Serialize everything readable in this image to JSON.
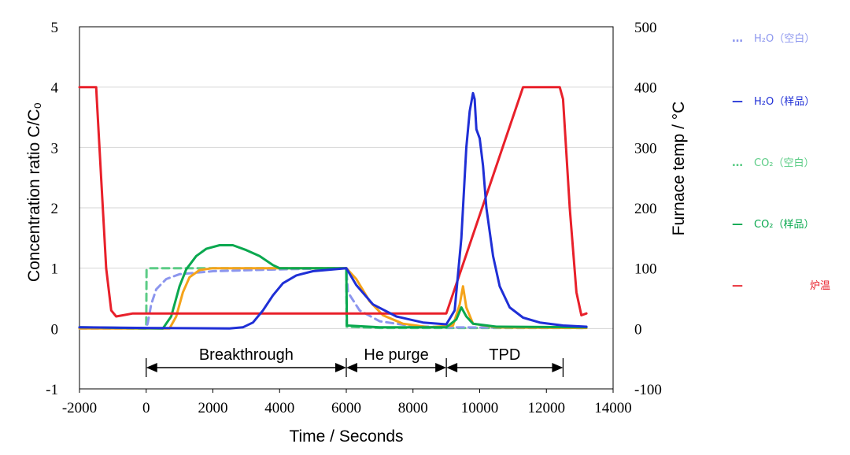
{
  "chart_data": {
    "type": "line",
    "xlabel": "Time / Seconds",
    "ylabel_left": "Concentration ratio C/C₀",
    "ylabel_right": "Furnace temp / °C",
    "xlim": [
      -2000,
      14000
    ],
    "ylim_left": [
      -1,
      5
    ],
    "ylim_right": [
      -100,
      500
    ],
    "x_ticks": [
      "-2000",
      "0",
      "2000",
      "4000",
      "6000",
      "8000",
      "10000",
      "12000",
      "14000"
    ],
    "y_left_ticks": [
      "-1",
      "0",
      "1",
      "2",
      "3",
      "4",
      "5"
    ],
    "y_right_ticks": [
      "-100",
      "0",
      "100",
      "200",
      "300",
      "400",
      "500"
    ],
    "grid": "horizontal",
    "legend_position": "right",
    "colors": {
      "h2o": "#1f2fd6",
      "h2o_blank": "#8c96ee",
      "co2": "#0aa84f",
      "co2_blank": "#5ccc86",
      "orange": "#f5a31a",
      "furnace": "#e8202a"
    },
    "phases": [
      {
        "label": "Breakthrough",
        "start": 0,
        "end": 6000
      },
      {
        "label": "He purge",
        "start": 6000,
        "end": 9000
      },
      {
        "label": "TPD",
        "start": 9000,
        "end": 12500
      }
    ],
    "series": [
      {
        "name": "H₂O（空白）",
        "axis": "left",
        "style": "dashed",
        "color_key": "h2o_blank",
        "points": [
          [
            -2000,
            0
          ],
          [
            0,
            0
          ],
          [
            50,
            0.1
          ],
          [
            150,
            0.4
          ],
          [
            300,
            0.65
          ],
          [
            600,
            0.82
          ],
          [
            1000,
            0.9
          ],
          [
            2000,
            0.95
          ],
          [
            4000,
            0.98
          ],
          [
            6000,
            1.0
          ],
          [
            6050,
            0.6
          ],
          [
            6400,
            0.3
          ],
          [
            7000,
            0.12
          ],
          [
            8000,
            0.04
          ],
          [
            9000,
            0.02
          ],
          [
            13200,
            0.01
          ]
        ]
      },
      {
        "name": "H₂O（样品）",
        "axis": "left",
        "style": "solid",
        "color_key": "h2o",
        "points": [
          [
            -2000,
            0.02
          ],
          [
            0,
            0.01
          ],
          [
            2500,
            0
          ],
          [
            2900,
            0.02
          ],
          [
            3200,
            0.1
          ],
          [
            3500,
            0.3
          ],
          [
            3800,
            0.55
          ],
          [
            4100,
            0.75
          ],
          [
            4500,
            0.88
          ],
          [
            5000,
            0.95
          ],
          [
            6000,
            1.0
          ],
          [
            6300,
            0.72
          ],
          [
            6800,
            0.4
          ],
          [
            7500,
            0.2
          ],
          [
            8300,
            0.1
          ],
          [
            9000,
            0.07
          ],
          [
            9250,
            0.3
          ],
          [
            9450,
            1.5
          ],
          [
            9600,
            3.0
          ],
          [
            9700,
            3.6
          ],
          [
            9800,
            3.9
          ],
          [
            9850,
            3.8
          ],
          [
            9900,
            3.3
          ],
          [
            10000,
            3.15
          ],
          [
            10100,
            2.7
          ],
          [
            10200,
            2.0
          ],
          [
            10400,
            1.2
          ],
          [
            10600,
            0.7
          ],
          [
            10900,
            0.35
          ],
          [
            11300,
            0.18
          ],
          [
            11800,
            0.1
          ],
          [
            12500,
            0.05
          ],
          [
            13200,
            0.03
          ]
        ]
      },
      {
        "name": "CO₂（空白）",
        "axis": "left",
        "style": "dashed",
        "color_key": "co2_blank",
        "points": [
          [
            -2000,
            0.01
          ],
          [
            0,
            0
          ],
          [
            10,
            0.98
          ],
          [
            100,
            1.0
          ],
          [
            6000,
            1.0
          ],
          [
            6010,
            0.03
          ],
          [
            7000,
            0.01
          ],
          [
            13200,
            0.01
          ]
        ]
      },
      {
        "name": "CO₂（样品）",
        "axis": "left",
        "style": "solid",
        "color_key": "co2",
        "points": [
          [
            -2000,
            0.02
          ],
          [
            500,
            0
          ],
          [
            750,
            0.2
          ],
          [
            1000,
            0.7
          ],
          [
            1200,
            0.98
          ],
          [
            1500,
            1.2
          ],
          [
            1800,
            1.32
          ],
          [
            2200,
            1.38
          ],
          [
            2600,
            1.38
          ],
          [
            3000,
            1.3
          ],
          [
            3400,
            1.2
          ],
          [
            3800,
            1.05
          ],
          [
            4000,
            1.0
          ],
          [
            6000,
            1.0
          ],
          [
            6020,
            0.05
          ],
          [
            7000,
            0.02
          ],
          [
            9000,
            0.02
          ],
          [
            9300,
            0.15
          ],
          [
            9450,
            0.35
          ],
          [
            9600,
            0.2
          ],
          [
            9800,
            0.08
          ],
          [
            10500,
            0.03
          ],
          [
            13200,
            0.02
          ]
        ]
      },
      {
        "name": "",
        "axis": "left",
        "style": "solid",
        "color_key": "orange",
        "points": [
          [
            -2000,
            0
          ],
          [
            0,
            0
          ],
          [
            700,
            0
          ],
          [
            900,
            0.2
          ],
          [
            1100,
            0.6
          ],
          [
            1300,
            0.85
          ],
          [
            1600,
            0.97
          ],
          [
            2000,
            1.0
          ],
          [
            6000,
            1.0
          ],
          [
            6300,
            0.82
          ],
          [
            6700,
            0.45
          ],
          [
            7100,
            0.22
          ],
          [
            7700,
            0.08
          ],
          [
            8500,
            0.02
          ],
          [
            9200,
            0.05
          ],
          [
            9400,
            0.4
          ],
          [
            9500,
            0.7
          ],
          [
            9600,
            0.35
          ],
          [
            9800,
            0.08
          ],
          [
            10500,
            0.02
          ],
          [
            13200,
            0.01
          ]
        ]
      },
      {
        "name": "炉温",
        "axis": "right",
        "style": "solid",
        "color_key": "furnace",
        "points": [
          [
            -2000,
            400
          ],
          [
            -1500,
            400
          ],
          [
            -1480,
            380
          ],
          [
            -1350,
            250
          ],
          [
            -1200,
            100
          ],
          [
            -1050,
            30
          ],
          [
            -900,
            20
          ],
          [
            -700,
            22
          ],
          [
            -400,
            25
          ],
          [
            9000,
            25
          ],
          [
            11300,
            400
          ],
          [
            12400,
            400
          ],
          [
            12500,
            380
          ],
          [
            12700,
            200
          ],
          [
            12900,
            60
          ],
          [
            13050,
            22
          ],
          [
            13200,
            25
          ]
        ]
      }
    ]
  }
}
